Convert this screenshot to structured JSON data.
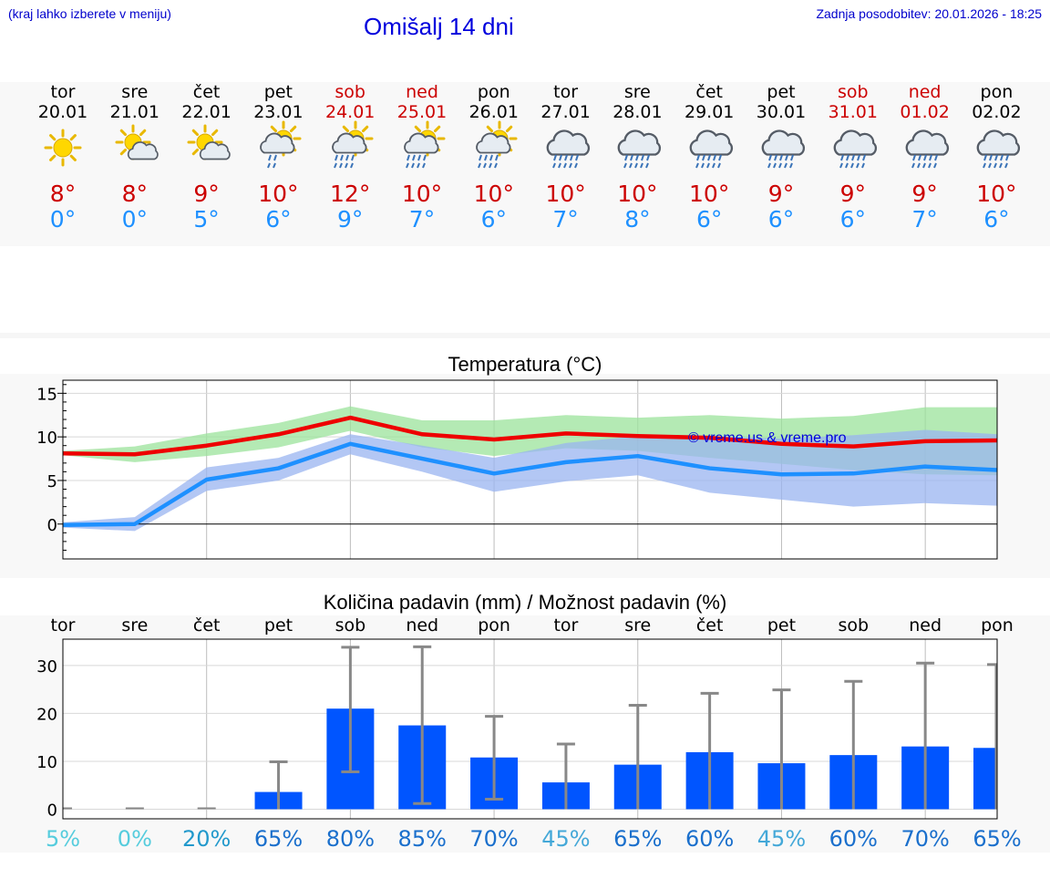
{
  "header": {
    "left_note": "(kraj lahko izberete v meniju)",
    "title": "Omišalj 14 dni",
    "updated": "Zadnja posodobitev: 20.01.2026 - 18:25"
  },
  "colors": {
    "max_line": "#ee0000",
    "min_line": "#1e90ff",
    "max_band": "#9be39b",
    "min_band": "#99b4f0",
    "bar": "#0055ff",
    "errorbar": "#888888"
  },
  "days": [
    {
      "name": "tor",
      "date": "20.01",
      "weekend": false,
      "icon": "sunny-icon",
      "tmax": "8°",
      "tmin": "0°"
    },
    {
      "name": "sre",
      "date": "21.01",
      "weekend": false,
      "icon": "sun-cloud-icon",
      "tmax": "8°",
      "tmin": "0°"
    },
    {
      "name": "čet",
      "date": "22.01",
      "weekend": false,
      "icon": "sun-cloud-icon",
      "tmax": "9°",
      "tmin": "5°"
    },
    {
      "name": "pet",
      "date": "23.01",
      "weekend": false,
      "icon": "sun-rain-light-icon",
      "tmax": "10°",
      "tmin": "6°"
    },
    {
      "name": "sob",
      "date": "24.01",
      "weekend": true,
      "icon": "sun-rain-icon",
      "tmax": "12°",
      "tmin": "9°"
    },
    {
      "name": "ned",
      "date": "25.01",
      "weekend": true,
      "icon": "sun-rain-icon",
      "tmax": "10°",
      "tmin": "7°"
    },
    {
      "name": "pon",
      "date": "26.01",
      "weekend": false,
      "icon": "sun-rain-icon",
      "tmax": "10°",
      "tmin": "6°"
    },
    {
      "name": "tor",
      "date": "27.01",
      "weekend": false,
      "icon": "cloud-rain-icon",
      "tmax": "10°",
      "tmin": "7°"
    },
    {
      "name": "sre",
      "date": "28.01",
      "weekend": false,
      "icon": "cloud-rain-icon",
      "tmax": "10°",
      "tmin": "8°"
    },
    {
      "name": "čet",
      "date": "29.01",
      "weekend": false,
      "icon": "cloud-rain-icon",
      "tmax": "10°",
      "tmin": "6°"
    },
    {
      "name": "pet",
      "date": "30.01",
      "weekend": false,
      "icon": "cloud-rain-icon",
      "tmax": "9°",
      "tmin": "6°"
    },
    {
      "name": "sob",
      "date": "31.01",
      "weekend": true,
      "icon": "cloud-rain-icon",
      "tmax": "9°",
      "tmin": "6°"
    },
    {
      "name": "ned",
      "date": "01.02",
      "weekend": true,
      "icon": "cloud-rain-icon",
      "tmax": "9°",
      "tmin": "7°"
    },
    {
      "name": "pon",
      "date": "02.02",
      "weekend": false,
      "icon": "cloud-rain-icon",
      "tmax": "10°",
      "tmin": "6°"
    }
  ],
  "chart_data": [
    {
      "type": "line",
      "title": "Temperatura (°C)",
      "ylim": [
        -4,
        16.5
      ],
      "yticks": [
        0,
        5,
        10,
        15
      ],
      "watermark": "© vreme.us & vreme.pro",
      "x": [
        0,
        1,
        2,
        3,
        4,
        5,
        6,
        7,
        8,
        9,
        10,
        11,
        12,
        13
      ],
      "series": [
        {
          "name": "max",
          "values": [
            8.1,
            8.0,
            9.0,
            10.3,
            12.2,
            10.3,
            9.7,
            10.4,
            10.1,
            9.9,
            9.2,
            8.9,
            9.5,
            9.6
          ]
        },
        {
          "name": "min",
          "values": [
            -0.1,
            0.0,
            5.1,
            6.4,
            9.2,
            7.5,
            5.8,
            7.1,
            7.8,
            6.4,
            5.7,
            5.8,
            6.6,
            6.2
          ]
        }
      ],
      "max_band": {
        "low": [
          7.9,
          7.1,
          7.8,
          8.8,
          10.7,
          8.8,
          7.8,
          8.7,
          8.4,
          7.6,
          6.9,
          6.2,
          5.7,
          5.6
        ],
        "high": [
          8.4,
          8.9,
          10.4,
          11.6,
          13.5,
          11.9,
          11.9,
          12.5,
          12.2,
          12.5,
          12.1,
          12.4,
          13.4,
          13.4
        ]
      },
      "min_band": {
        "low": [
          -0.4,
          -0.8,
          3.8,
          5.0,
          8.0,
          6.0,
          3.7,
          4.9,
          5.6,
          3.6,
          2.8,
          2.0,
          2.4,
          2.1
        ],
        "high": [
          0.2,
          0.8,
          6.5,
          7.6,
          10.3,
          9.0,
          7.6,
          9.3,
          10.1,
          10.1,
          9.8,
          10.2,
          10.8,
          10.3
        ]
      }
    },
    {
      "type": "bar",
      "title": "Količina padavin (mm) / Možnost padavin (%)",
      "ylim": [
        -2,
        35.5
      ],
      "yticks": [
        0,
        10,
        20,
        30
      ],
      "categories": [
        "tor",
        "sre",
        "čet",
        "pet",
        "sob",
        "ned",
        "pon",
        "tor",
        "sre",
        "čet",
        "pet",
        "sob",
        "ned",
        "pon"
      ],
      "values": [
        0,
        0,
        0,
        3.6,
        21.0,
        17.5,
        10.8,
        5.6,
        9.3,
        11.9,
        9.6,
        11.3,
        13.1,
        12.8
      ],
      "err_low": [
        0,
        0,
        0,
        0,
        7.8,
        1.2,
        2.1,
        0,
        0,
        0,
        0,
        0,
        0,
        0
      ],
      "err_high": [
        0,
        0,
        0,
        9.9,
        33.8,
        33.9,
        19.4,
        13.6,
        21.7,
        24.2,
        24.9,
        26.7,
        30.5,
        30.2
      ],
      "chance": [
        "5%",
        "0%",
        "20%",
        "65%",
        "80%",
        "85%",
        "70%",
        "45%",
        "65%",
        "60%",
        "45%",
        "60%",
        "70%",
        "65%"
      ],
      "chance_values": [
        5,
        0,
        20,
        65,
        80,
        85,
        70,
        45,
        65,
        60,
        45,
        60,
        70,
        65
      ]
    }
  ]
}
